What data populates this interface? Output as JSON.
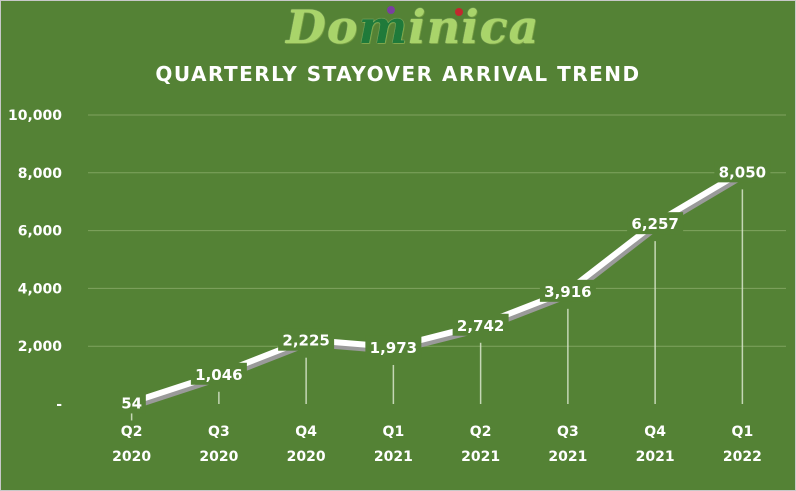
{
  "logo": {
    "part1": "Do",
    "part2": "m",
    "part3": "inica"
  },
  "chart_data": {
    "type": "line",
    "title": "QUARTERLY STAYOVER ARRIVAL TREND",
    "xlabel": "",
    "ylabel": "",
    "categories": [
      [
        "Q2",
        "2020"
      ],
      [
        "Q3",
        "2020"
      ],
      [
        "Q4",
        "2020"
      ],
      [
        "Q1",
        "2021"
      ],
      [
        "Q2",
        "2021"
      ],
      [
        "Q3",
        "2021"
      ],
      [
        "Q4",
        "2021"
      ],
      [
        "Q1",
        "2022"
      ]
    ],
    "series": [
      {
        "values": [
          54,
          1046,
          2225,
          1973,
          2742,
          3916,
          6257,
          8050
        ]
      }
    ],
    "data_labels": [
      "54",
      "1,046",
      "2,225",
      "1,973",
      "2,742",
      "3,916",
      "6,257",
      "8,050"
    ],
    "ylim": [
      0,
      10000
    ],
    "yticks": [
      0,
      2000,
      4000,
      6000,
      8000,
      10000
    ],
    "ytick_labels": [
      "-",
      "2,000",
      "4,000",
      "6,000",
      "8,000",
      "10,000"
    ],
    "grid": true,
    "legend": "none",
    "colors": {
      "background": "#548235",
      "line": "#ffffff",
      "shadow": "#9a9a9a",
      "text": "#ffffff",
      "grid": "#7fa35f"
    }
  }
}
